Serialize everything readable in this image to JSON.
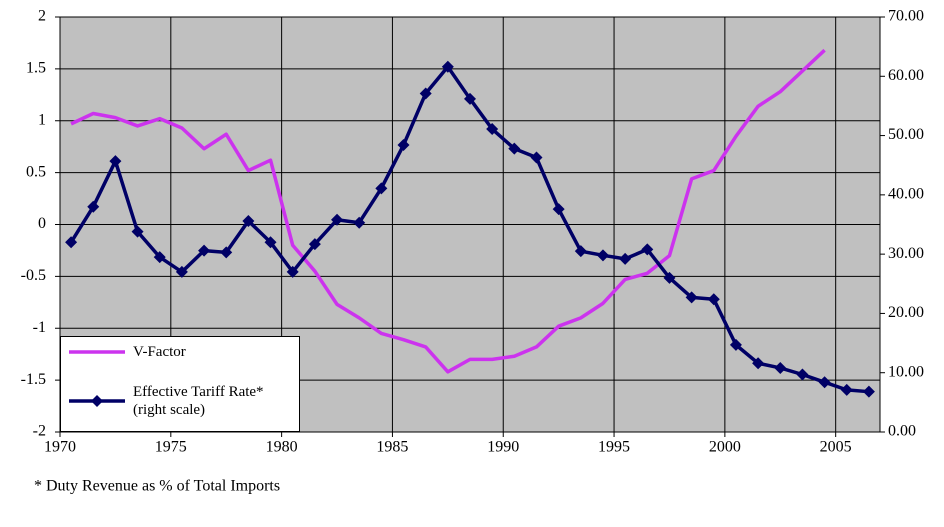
{
  "chart_data": {
    "type": "line",
    "x": [
      1970.5,
      1971.5,
      1972.5,
      1973.5,
      1974.5,
      1975.5,
      1976.5,
      1977.5,
      1978.5,
      1979.5,
      1980.5,
      1981.5,
      1982.5,
      1983.5,
      1984.5,
      1985.5,
      1986.5,
      1987.5,
      1988.5,
      1989.5,
      1990.5,
      1991.5,
      1992.5,
      1993.5,
      1994.5,
      1995.5,
      1996.5,
      1997.5,
      1998.5,
      1999.5,
      2000.5,
      2001.5,
      2002.5,
      2003.5,
      2004.5,
      2005.5,
      2006.5
    ],
    "series": [
      {
        "name": "V-Factor",
        "color": "#cc33ee",
        "marker": "none",
        "values": [
          0.97,
          1.07,
          1.03,
          0.95,
          1.02,
          0.93,
          0.73,
          0.87,
          0.52,
          0.62,
          -0.2,
          -0.45,
          -0.77,
          -0.9,
          -1.05,
          -1.11,
          -1.18,
          -1.42,
          -1.3,
          -1.3,
          -1.27,
          -1.18,
          -0.98,
          -0.9,
          -0.76,
          -0.53,
          -0.47,
          -0.3,
          0.44,
          0.52,
          0.85,
          1.14,
          1.28,
          1.48,
          1.68,
          null,
          null
        ]
      },
      {
        "name": "Effective Tariff Rate* (right scale)",
        "color": "#000066",
        "marker": "diamond",
        "axis": "y2",
        "values": [
          32,
          38,
          45.7,
          33.8,
          29.5,
          27,
          30.6,
          30.3,
          35.6,
          32,
          27,
          31.7,
          35.8,
          35.3,
          41.1,
          48.4,
          57.1,
          61.6,
          56.2,
          51.1,
          47.8,
          46.3,
          37.6,
          30.5,
          29.8,
          29.2,
          30.8,
          26,
          22.7,
          22.4,
          14.7,
          11.6,
          10.8,
          9.7,
          8.4,
          7.1,
          6.8
        ]
      }
    ],
    "xlim": [
      1970,
      2007
    ],
    "xticks": [
      1970,
      1975,
      1980,
      1985,
      1990,
      1995,
      2000,
      2005
    ],
    "ylim": [
      -2,
      2
    ],
    "yticks": [
      2,
      1.5,
      1,
      0.5,
      0,
      -0.5,
      -1,
      -1.5,
      -2
    ],
    "y2lim": [
      0,
      70
    ],
    "y2ticks": [
      {
        "value": 70,
        "label": "70.00"
      },
      {
        "value": 60,
        "label": "60.00"
      },
      {
        "value": 50,
        "label": "50.00"
      },
      {
        "value": 40,
        "label": "40.00"
      },
      {
        "value": 30,
        "label": "30.00"
      },
      {
        "value": 20,
        "label": "20.00"
      },
      {
        "value": 10,
        "label": "10.00"
      },
      {
        "value": 0,
        "label": "0.00"
      }
    ],
    "grid": true,
    "plot_background": "#c0c0c0",
    "legend": "lower left",
    "footnote": "* Duty Revenue as % of Total Imports"
  }
}
